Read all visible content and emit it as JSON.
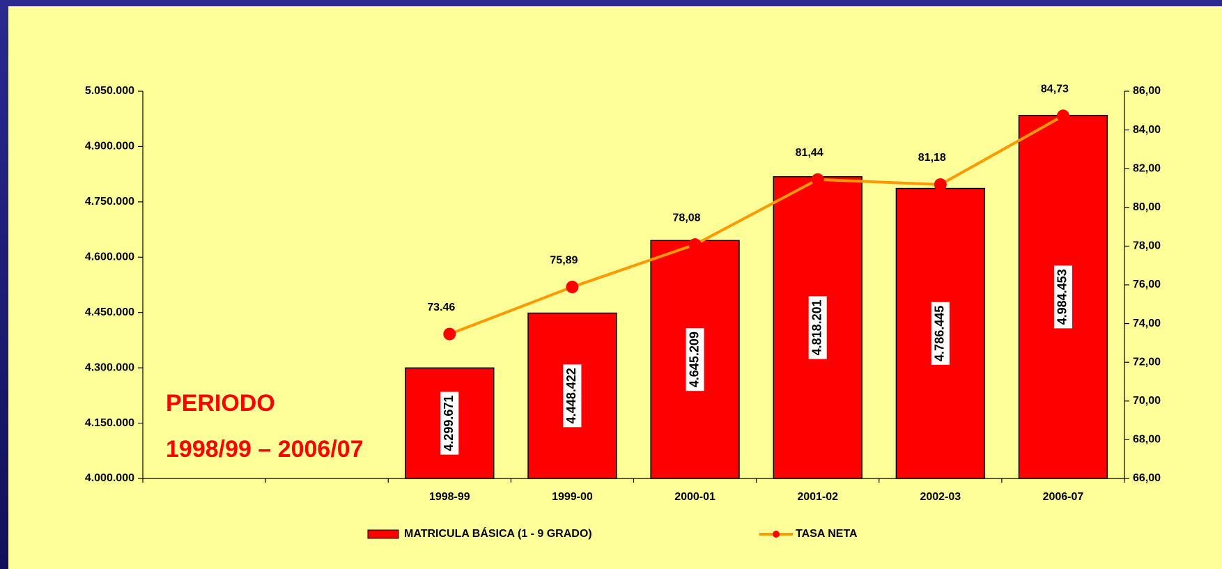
{
  "chart_data": {
    "type": "bar",
    "categories": [
      null,
      null,
      "1998-99",
      "1999-00",
      "2000-01",
      "2001-02",
      "2002-03",
      "2006-07"
    ],
    "series": [
      {
        "name": "MATRICULA BÁSICA (1 - 9 GRADO)",
        "type": "bar",
        "color": "#ff0000",
        "values": [
          null,
          null,
          4299671,
          4448422,
          4645209,
          4818201,
          4786445,
          4984453
        ],
        "value_labels": [
          null,
          null,
          "4.299.671",
          "4.448.422",
          "4.645.209",
          "4.818.201",
          "4.786.445",
          "4.984.453"
        ]
      },
      {
        "name": "TASA NETA",
        "type": "line",
        "axis": "y2",
        "color": "#ff9900",
        "marker_color": "#ff0000",
        "values": [
          null,
          null,
          73.46,
          75.89,
          78.08,
          81.44,
          81.18,
          84.73
        ],
        "value_labels": [
          null,
          null,
          "73.46",
          "75,89",
          "78,08",
          "81,44",
          "81,18",
          "84,73"
        ]
      }
    ],
    "ylim": [
      4000000,
      5050000
    ],
    "yticks": [
      {
        "value": 4000000,
        "label": "4.000.000"
      },
      {
        "value": 4150000,
        "label": "4.150.000"
      },
      {
        "value": 4300000,
        "label": "4.300.000"
      },
      {
        "value": 4450000,
        "label": "4.450.000"
      },
      {
        "value": 4600000,
        "label": "4.600.000"
      },
      {
        "value": 4750000,
        "label": "4.750.000"
      },
      {
        "value": 4900000,
        "label": "4.900.000"
      },
      {
        "value": 5050000,
        "label": "5.050.000"
      }
    ],
    "y2lim": [
      66,
      86
    ],
    "y2ticks": [
      {
        "value": 66,
        "label": "66,00"
      },
      {
        "value": 68,
        "label": "68,00"
      },
      {
        "value": 70,
        "label": "70,00"
      },
      {
        "value": 72,
        "label": "72,00"
      },
      {
        "value": 74,
        "label": "74,00"
      },
      {
        "value": 76,
        "label": "76,00"
      },
      {
        "value": 78,
        "label": "78,00"
      },
      {
        "value": 80,
        "label": "80,00"
      },
      {
        "value": 82,
        "label": "82,00"
      },
      {
        "value": 84,
        "label": "84,00"
      },
      {
        "value": 86,
        "label": "86,00"
      }
    ],
    "annotations": [
      "PERIODO",
      "1998/99 – 2006/07"
    ],
    "grid": false,
    "legend": "bottom"
  }
}
